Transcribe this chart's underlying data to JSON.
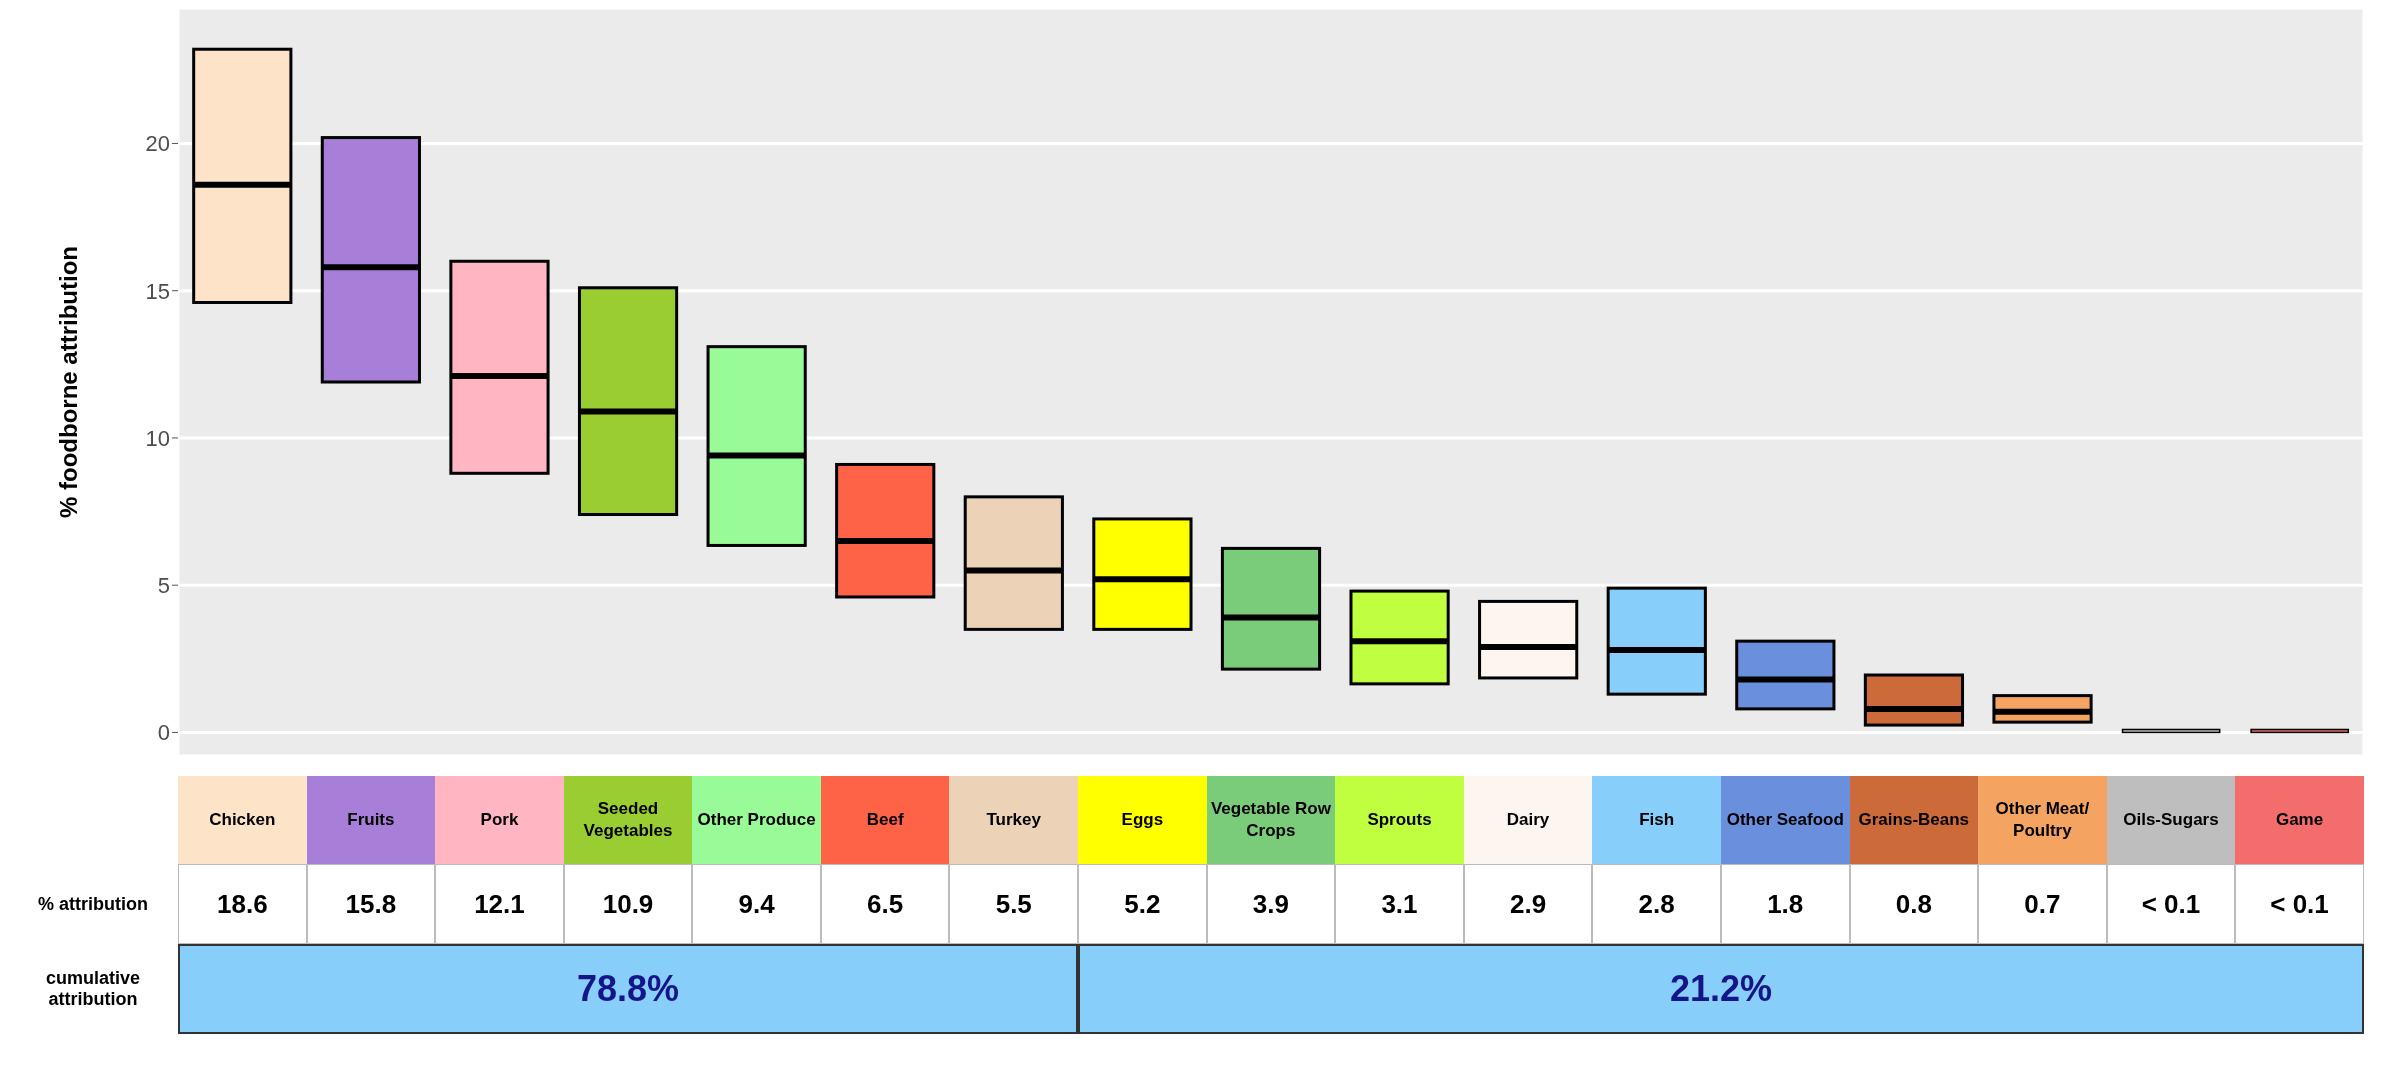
{
  "chart_data": {
    "type": "box",
    "ylabel": "% foodborne attribution",
    "categories": [
      "Chicken",
      "Fruits",
      "Pork",
      "Seeded Vegetables",
      "Other Produce",
      "Beef",
      "Turkey",
      "Eggs",
      "Vegetable Row Crops",
      "Sprouts",
      "Dairy",
      "Fish",
      "Other Seafood",
      "Grains-Beans",
      "Other Meat/ Poultry",
      "Oils-Sugars",
      "Game"
    ],
    "boxes": [
      {
        "low": 14.6,
        "q1": 14.6,
        "median": 18.6,
        "q3": 23.2,
        "high": 23.2
      },
      {
        "low": 11.9,
        "q1": 11.9,
        "median": 15.8,
        "q3": 20.2,
        "high": 20.2
      },
      {
        "low": 8.8,
        "q1": 8.8,
        "median": 12.1,
        "q3": 16.0,
        "high": 16.0
      },
      {
        "low": 7.4,
        "q1": 7.4,
        "median": 10.9,
        "q3": 15.1,
        "high": 15.1
      },
      {
        "low": 6.35,
        "q1": 6.35,
        "median": 9.4,
        "q3": 13.1,
        "high": 13.1
      },
      {
        "low": 4.6,
        "q1": 4.6,
        "median": 6.5,
        "q3": 9.1,
        "high": 9.1
      },
      {
        "low": 3.5,
        "q1": 3.5,
        "median": 5.5,
        "q3": 8.0,
        "high": 8.0
      },
      {
        "low": 3.5,
        "q1": 3.5,
        "median": 5.2,
        "q3": 7.25,
        "high": 7.25
      },
      {
        "low": 2.15,
        "q1": 2.15,
        "median": 3.9,
        "q3": 6.25,
        "high": 6.25
      },
      {
        "low": 1.65,
        "q1": 1.65,
        "median": 3.1,
        "q3": 4.8,
        "high": 4.8
      },
      {
        "low": 1.85,
        "q1": 1.85,
        "median": 2.9,
        "q3": 4.45,
        "high": 4.45
      },
      {
        "low": 1.3,
        "q1": 1.3,
        "median": 2.8,
        "q3": 4.9,
        "high": 4.9
      },
      {
        "low": 0.8,
        "q1": 0.8,
        "median": 1.8,
        "q3": 3.1,
        "high": 3.1
      },
      {
        "low": 0.25,
        "q1": 0.25,
        "median": 0.8,
        "q3": 1.95,
        "high": 1.95
      },
      {
        "low": 0.35,
        "q1": 0.35,
        "median": 0.7,
        "q3": 1.25,
        "high": 1.25
      },
      {
        "low": 0,
        "q1": 0,
        "median": 0.05,
        "q3": 0.1,
        "high": 0.1
      },
      {
        "low": 0,
        "q1": 0,
        "median": 0.05,
        "q3": 0.1,
        "high": 0.1
      }
    ],
    "colors": [
      "#fde3c8",
      "#a77fd8",
      "#ffb5c2",
      "#9acd32",
      "#98fb98",
      "#ff6347",
      "#ecd3b8",
      "#ffff00",
      "#7acb7a",
      "#bfff3f",
      "#fdf5ef",
      "#87cefa",
      "#6a8fdc",
      "#cd6a3a",
      "#f4a460",
      "#bebebe",
      "#f46d6d"
    ],
    "value_labels": [
      "18.6",
      "15.8",
      "12.1",
      "10.9",
      "9.4",
      "6.5",
      "5.5",
      "5.2",
      "3.9",
      "3.1",
      "2.9",
      "2.8",
      "1.8",
      "0.8",
      "0.7",
      "< 0.1",
      "< 0.1"
    ],
    "ylim": [
      -0.8,
      24.6
    ],
    "yticks": [
      0,
      5,
      10,
      15,
      20
    ],
    "grid": true,
    "tick_labels": "y",
    "annotations": [
      "% attribution",
      "cumulative attribution",
      "78.8%",
      "21.2%"
    ]
  }
}
